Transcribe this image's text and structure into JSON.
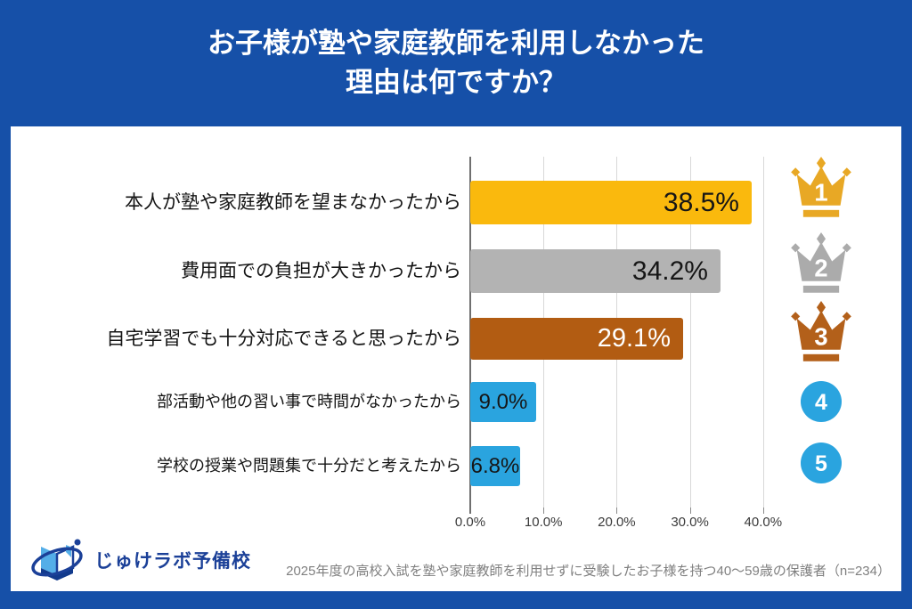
{
  "title": "お子様が塾や家庭教師を利用しなかった\n理由は何ですか？",
  "chart_data": {
    "type": "bar",
    "orientation": "horizontal",
    "title": "お子様が塾や家庭教師を利用しなかった理由は何ですか？",
    "categories": [
      "本人が塾や家庭教師を望まなかったから",
      "費用面での負担が大きかったから",
      "自宅学習でも十分対応できると思ったから",
      "部活動や他の習い事で時間がなかったから",
      "学校の授業や問題集で十分だと考えたから"
    ],
    "values": [
      38.5,
      34.2,
      29.1,
      9.0,
      6.8
    ],
    "value_labels": [
      "38.5%",
      "34.2%",
      "29.1%",
      "9.0%",
      "6.8%"
    ],
    "bar_colors": [
      "#FAB90D",
      "#B3B3B3",
      "#B25C12",
      "#2AA4DF",
      "#2AA4DF"
    ],
    "value_label_colors": [
      "#161616",
      "#161616",
      "#FFFFFF",
      "#161616",
      "#161616"
    ],
    "ranks": [
      1,
      2,
      3,
      4,
      5
    ],
    "rank_marker": [
      "crown",
      "crown",
      "crown",
      "circle",
      "circle"
    ],
    "rank_colors": [
      "#E8A825",
      "#ABABAB",
      "#B3601A",
      "#2AA4DF",
      "#2AA4DF"
    ],
    "xlim": [
      0,
      40
    ],
    "x_ticks": [
      0,
      10,
      20,
      30,
      40
    ],
    "x_tick_labels": [
      "0.0%",
      "10.0%",
      "20.0%",
      "30.0%",
      "40.0%"
    ],
    "xlabel": "",
    "ylabel": "",
    "grid": true,
    "legend": false
  },
  "logo": {
    "text": "じゅけラボ予備校"
  },
  "footnote": "2025年度の高校入試を塾や家庭教師を利用せずに受験したお子様を持つ40～59歳の保護者（n=234）",
  "colors": {
    "background": "#1650A8",
    "card": "#FFFFFF",
    "title_text": "#FFFFFF",
    "gridline": "#D8D8D8",
    "axis": "#6F6F6F",
    "tick_text": "#3A3A3A",
    "category_text": "#141414",
    "footnote_text": "#7F7F7F",
    "logo_blue": "#1B4098",
    "logo_light_blue": "#54AEE8"
  }
}
